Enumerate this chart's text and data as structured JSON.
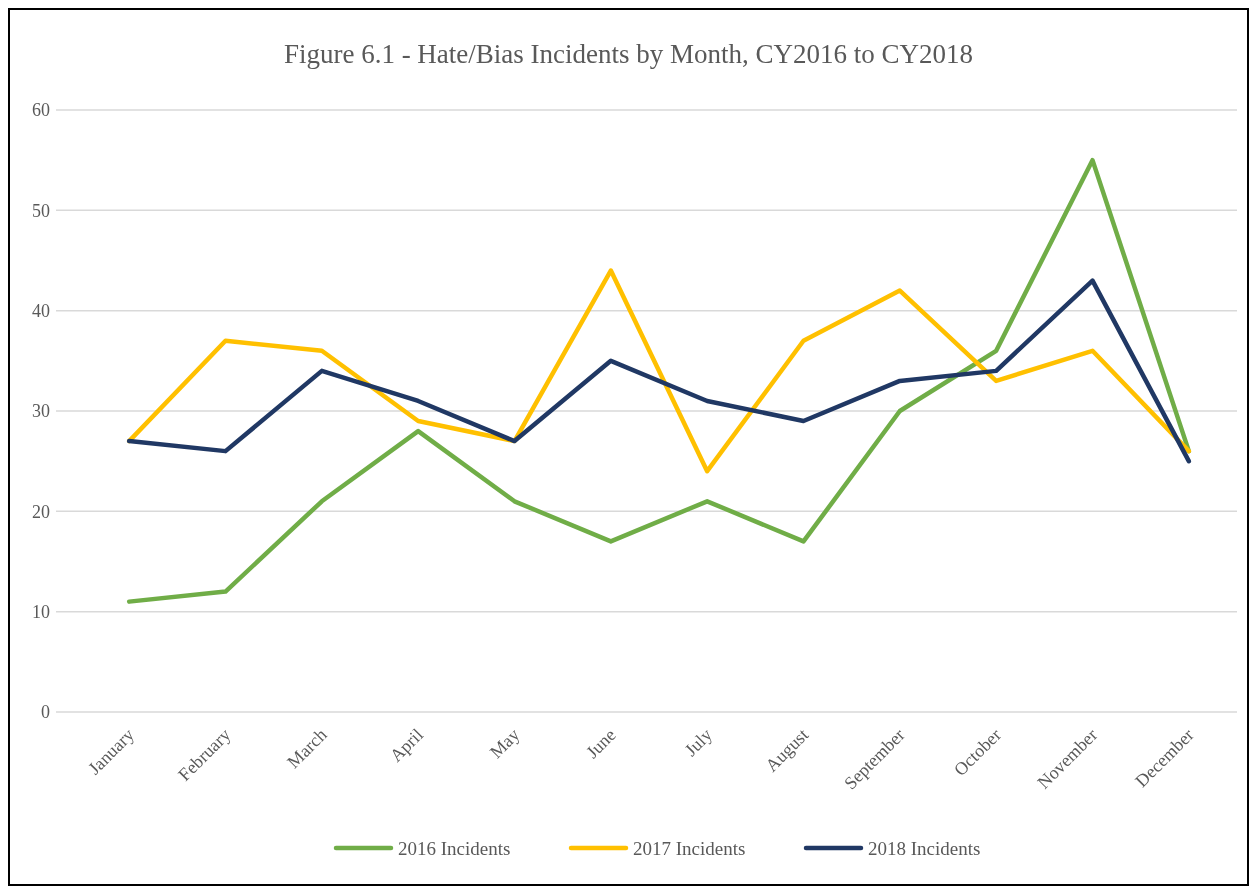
{
  "chart_data": {
    "type": "line",
    "title": "Figure 6.1 - Hate/Bias Incidents by Month, CY2016 to CY2018",
    "categories": [
      "January",
      "February",
      "March",
      "April",
      "May",
      "June",
      "July",
      "August",
      "September",
      "October",
      "November",
      "December"
    ],
    "series": [
      {
        "name": "2016 Incidents",
        "color": "#70ad47",
        "values": [
          11,
          12,
          21,
          28,
          21,
          17,
          21,
          17,
          30,
          36,
          55,
          26
        ]
      },
      {
        "name": "2017 Incidents",
        "color": "#ffc000",
        "values": [
          27,
          37,
          36,
          29,
          27,
          44,
          24,
          37,
          42,
          33,
          36,
          26
        ]
      },
      {
        "name": "2018 Incidents",
        "color": "#203864",
        "values": [
          27,
          26,
          34,
          31,
          27,
          35,
          31,
          29,
          33,
          34,
          43,
          25
        ]
      }
    ],
    "ylim": [
      0,
      60
    ],
    "yticks": [
      0,
      10,
      20,
      30,
      40,
      50,
      60
    ],
    "grid": "y",
    "legend": "bottom",
    "marker": "none",
    "line_style": "solid"
  }
}
